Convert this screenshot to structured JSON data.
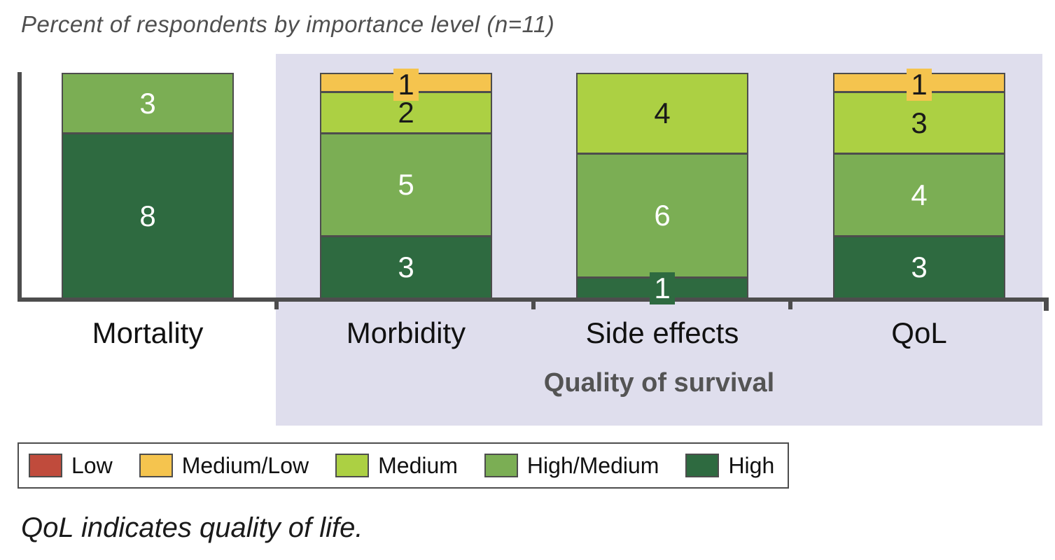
{
  "chart_data": {
    "type": "stacked-bar",
    "title": "Percent of respondents by importance level (n=11)",
    "n_respondents": 11,
    "y_max": 11,
    "grid": false,
    "legend_position": "bottom",
    "levels": [
      {
        "name": "Low",
        "color": "#c04b3c",
        "text_color": "#ffffff"
      },
      {
        "name": "Medium/Low",
        "color": "#f5c44e",
        "text_color": "#1a1a1a"
      },
      {
        "name": "Medium",
        "color": "#acd043",
        "text_color": "#1a1a1a"
      },
      {
        "name": "High/Medium",
        "color": "#7bae54",
        "text_color": "#ffffff"
      },
      {
        "name": "High",
        "color": "#2e6a40",
        "text_color": "#ffffff"
      }
    ],
    "categories": [
      "Mortality",
      "Morbidity",
      "Side effects",
      "QoL"
    ],
    "bars": [
      {
        "category": "Mortality",
        "in_group": false,
        "segments": [
          {
            "level": "High/Medium",
            "value": 3
          },
          {
            "level": "High",
            "value": 8
          }
        ]
      },
      {
        "category": "Morbidity",
        "in_group": true,
        "segments": [
          {
            "level": "Medium/Low",
            "value": 1
          },
          {
            "level": "Medium",
            "value": 2
          },
          {
            "level": "High/Medium",
            "value": 5
          },
          {
            "level": "High",
            "value": 3
          }
        ]
      },
      {
        "category": "Side effects",
        "in_group": true,
        "segments": [
          {
            "level": "Medium",
            "value": 4
          },
          {
            "level": "High/Medium",
            "value": 6
          },
          {
            "level": "High",
            "value": 1
          }
        ]
      },
      {
        "category": "QoL",
        "in_group": true,
        "segments": [
          {
            "level": "Medium/Low",
            "value": 1
          },
          {
            "level": "Medium",
            "value": 3
          },
          {
            "level": "High/Medium",
            "value": 4
          },
          {
            "level": "High",
            "value": 3
          }
        ]
      }
    ],
    "group_label": "Quality of survival",
    "group_panel_color": "#dfdeed",
    "axis_color": "#4d4d4d",
    "footnote": "QoL indicates quality of life."
  }
}
